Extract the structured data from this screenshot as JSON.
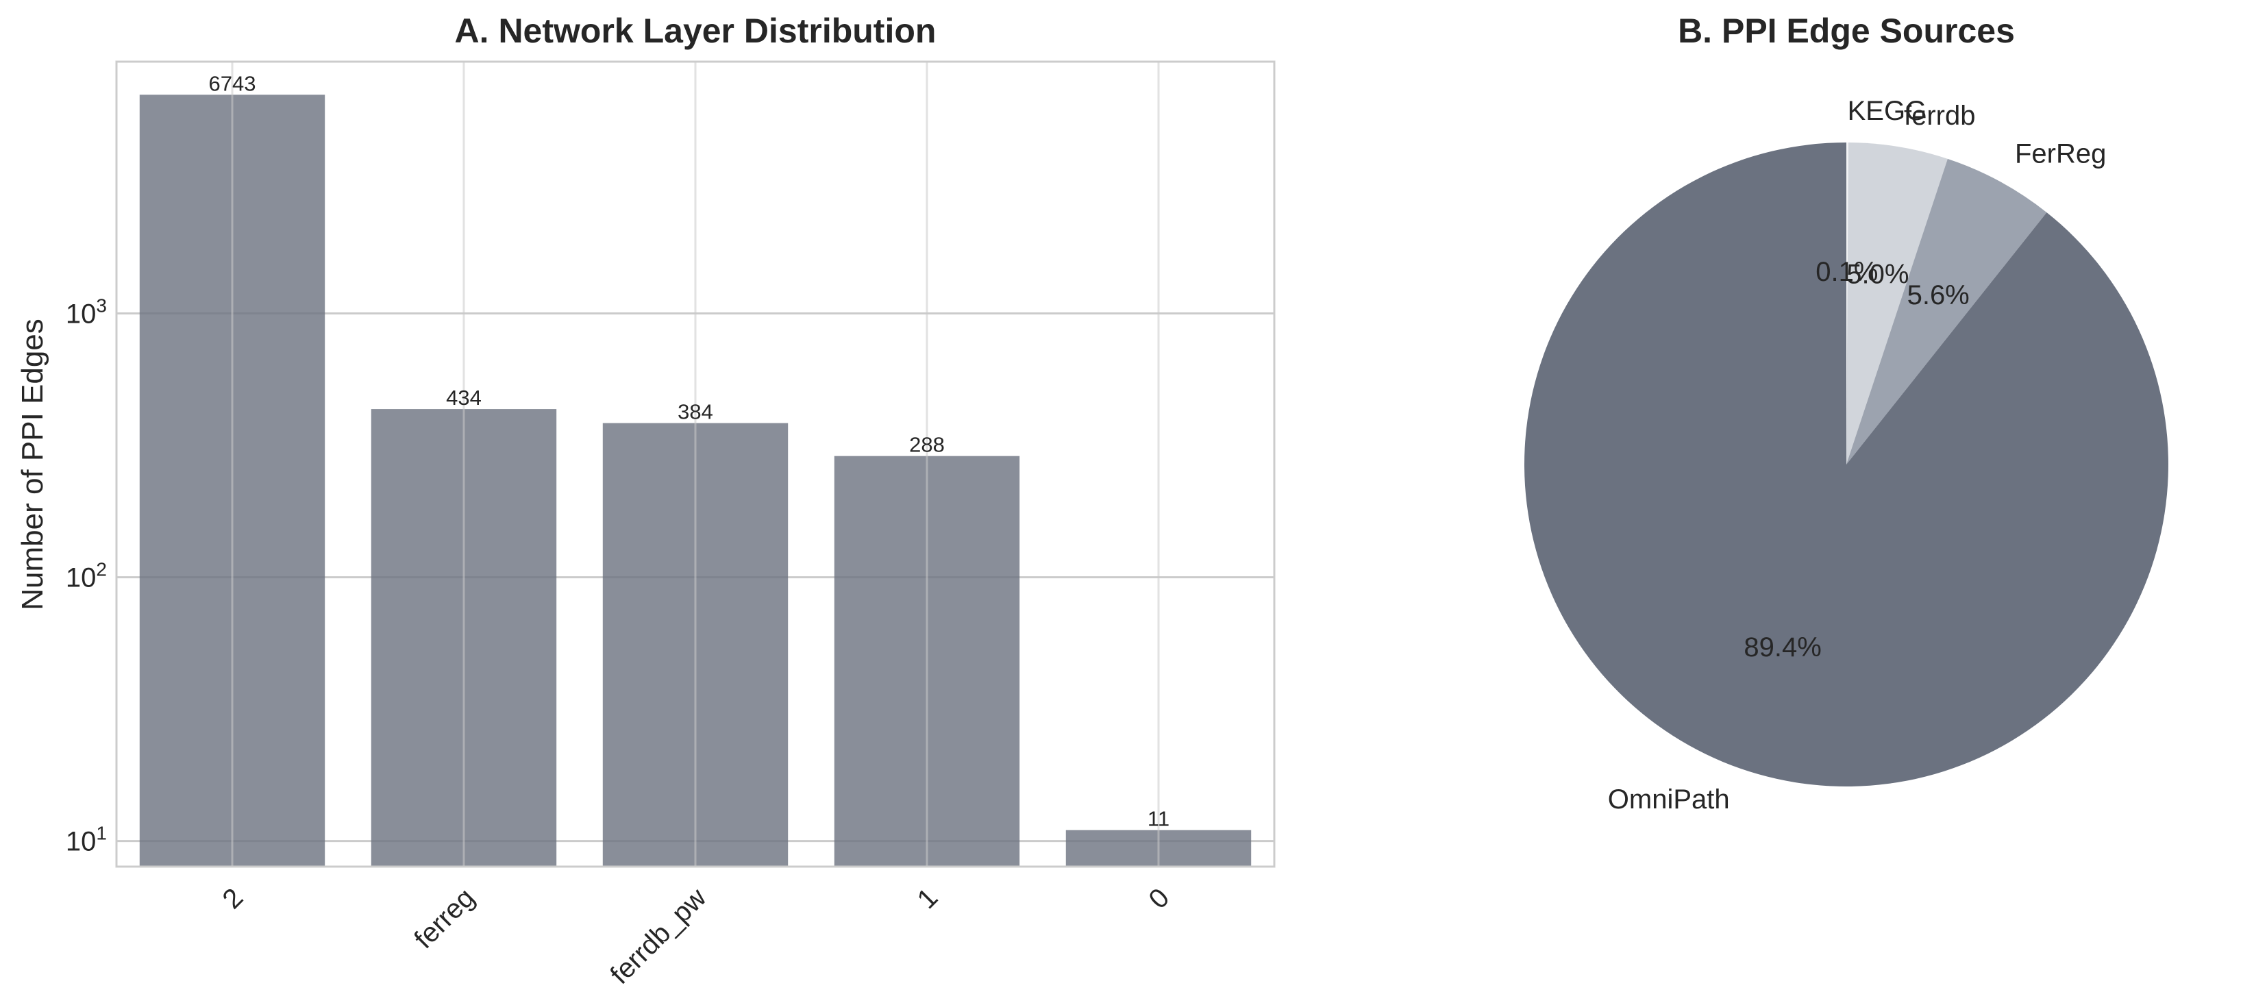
{
  "chart_data": [
    {
      "type": "bar",
      "title": "A. Network Layer Distribution",
      "xlabel": "",
      "ylabel": "Number of PPI Edges",
      "yscale": "log",
      "ylim": [
        8,
        9000
      ],
      "yticks": [
        {
          "value": 10,
          "base": "10",
          "exp": "1"
        },
        {
          "value": 100,
          "base": "10",
          "exp": "2"
        },
        {
          "value": 1000,
          "base": "10",
          "exp": "3"
        }
      ],
      "categories": [
        "2",
        "ferreg",
        "ferrdb_pw",
        "1",
        "0"
      ],
      "values": [
        6743,
        434,
        384,
        288,
        11
      ],
      "data_labels": [
        "6743",
        "434",
        "384",
        "288",
        "11"
      ],
      "bar_color": "#6b7280",
      "bar_opacity": 0.8,
      "grid": true,
      "legend": "none"
    },
    {
      "type": "pie",
      "title": "B. PPI Edge Sources",
      "slices": [
        {
          "label": "KEGG",
          "value": 0.1,
          "pct_label": "0.1%",
          "color": "#f3f4f6"
        },
        {
          "label": "ferrdb",
          "value": 5.0,
          "pct_label": "5.0%",
          "color": "#d1d5db"
        },
        {
          "label": "FerReg",
          "value": 5.6,
          "pct_label": "5.6%",
          "color": "#9ca3af"
        },
        {
          "label": "OmniPath",
          "value": 89.4,
          "pct_label": "89.4%",
          "color": "#6b7280"
        }
      ],
      "start_angle": "top",
      "direction": "clockwise",
      "legend": "none"
    }
  ]
}
